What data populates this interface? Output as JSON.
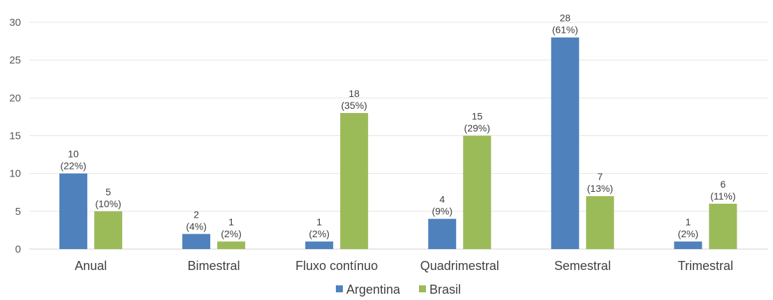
{
  "chart_data": {
    "type": "bar",
    "categories": [
      "Anual",
      "Bimestral",
      "Fluxo contínuo",
      "Quadrimestral",
      "Semestral",
      "Trimestral"
    ],
    "series": [
      {
        "name": "Argentina",
        "color": "#4f81bd",
        "values": [
          10,
          2,
          1,
          4,
          28,
          1
        ],
        "labels": [
          [
            "10",
            "(22%)"
          ],
          [
            "2",
            "(4%)"
          ],
          [
            "1",
            "(2%)"
          ],
          [
            "4",
            "(9%)"
          ],
          [
            "28",
            "(61%)"
          ],
          [
            "1",
            "(2%)"
          ]
        ]
      },
      {
        "name": "Brasil",
        "color": "#9bbb59",
        "values": [
          5,
          1,
          18,
          15,
          7,
          6
        ],
        "labels": [
          [
            "5",
            "(10%)"
          ],
          [
            "1",
            "(2%)"
          ],
          [
            "18",
            "(35%)"
          ],
          [
            "15",
            "(29%)"
          ],
          [
            "7",
            "(13%)"
          ],
          [
            "6",
            "(11%)"
          ]
        ]
      }
    ],
    "yticks": [
      "0",
      "5",
      "10",
      "15",
      "20",
      "25",
      "30"
    ],
    "ylim": [
      0,
      30
    ],
    "grid": true,
    "legend_position": "bottom-center"
  }
}
